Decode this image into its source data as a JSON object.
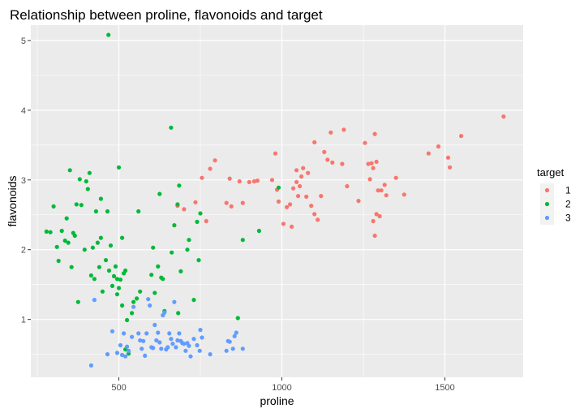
{
  "chart_data": {
    "type": "scatter",
    "title": "Relationship between proline, flavonoids and target",
    "xlabel": "proline",
    "ylabel": "flavonoids",
    "xlim": [
      230,
      1740
    ],
    "ylim": [
      0.17,
      5.22
    ],
    "xticks": [
      500,
      1000,
      1500
    ],
    "yticks": [
      1,
      2,
      3,
      4,
      5
    ],
    "grid": true,
    "legend": {
      "title": "target",
      "placement": "right"
    },
    "series": [
      {
        "name": "1",
        "color": "#F8766D",
        "points": [
          [
            680,
            2.63
          ],
          [
            700,
            2.58
          ],
          [
            735,
            2.68
          ],
          [
            755,
            3.03
          ],
          [
            768,
            2.41
          ],
          [
            780,
            3.16
          ],
          [
            795,
            3.28
          ],
          [
            830,
            2.67
          ],
          [
            840,
            3.02
          ],
          [
            845,
            2.62
          ],
          [
            870,
            2.98
          ],
          [
            880,
            2.67
          ],
          [
            900,
            2.97
          ],
          [
            915,
            2.98
          ],
          [
            925,
            2.99
          ],
          [
            970,
            3.0
          ],
          [
            980,
            3.38
          ],
          [
            985,
            2.86
          ],
          [
            990,
            2.69
          ],
          [
            1005,
            2.37
          ],
          [
            1015,
            2.61
          ],
          [
            1025,
            2.65
          ],
          [
            1030,
            2.33
          ],
          [
            1035,
            2.88
          ],
          [
            1045,
            3.14
          ],
          [
            1045,
            2.97
          ],
          [
            1050,
            2.77
          ],
          [
            1055,
            2.91
          ],
          [
            1060,
            3.05
          ],
          [
            1065,
            3.17
          ],
          [
            1075,
            2.76
          ],
          [
            1080,
            3.1
          ],
          [
            1090,
            2.63
          ],
          [
            1100,
            2.51
          ],
          [
            1100,
            3.54
          ],
          [
            1110,
            2.43
          ],
          [
            1120,
            2.77
          ],
          [
            1130,
            3.4
          ],
          [
            1140,
            3.29
          ],
          [
            1150,
            3.68
          ],
          [
            1155,
            3.25
          ],
          [
            1185,
            3.23
          ],
          [
            1190,
            3.72
          ],
          [
            1200,
            2.91
          ],
          [
            1235,
            2.7
          ],
          [
            1255,
            3.53
          ],
          [
            1265,
            3.23
          ],
          [
            1270,
            3.01
          ],
          [
            1275,
            3.24
          ],
          [
            1280,
            2.41
          ],
          [
            1280,
            3.17
          ],
          [
            1285,
            3.66
          ],
          [
            1285,
            2.2
          ],
          [
            1290,
            3.26
          ],
          [
            1290,
            2.51
          ],
          [
            1295,
            2.85
          ],
          [
            1300,
            2.48
          ],
          [
            1305,
            2.85
          ],
          [
            1315,
            2.93
          ],
          [
            1320,
            2.78
          ],
          [
            1350,
            3.03
          ],
          [
            1375,
            2.79
          ],
          [
            1450,
            3.38
          ],
          [
            1480,
            3.48
          ],
          [
            1510,
            3.32
          ],
          [
            1515,
            3.18
          ],
          [
            1550,
            3.63
          ],
          [
            1680,
            3.91
          ]
        ]
      },
      {
        "name": "2",
        "color": "#00BA38",
        "points": [
          [
            278,
            2.26
          ],
          [
            290,
            2.25
          ],
          [
            300,
            2.62
          ],
          [
            310,
            2.04
          ],
          [
            315,
            1.84
          ],
          [
            325,
            2.27
          ],
          [
            335,
            2.13
          ],
          [
            340,
            2.45
          ],
          [
            345,
            2.1
          ],
          [
            350,
            3.14
          ],
          [
            355,
            1.75
          ],
          [
            360,
            2.24
          ],
          [
            365,
            2.2
          ],
          [
            370,
            2.65
          ],
          [
            375,
            1.25
          ],
          [
            380,
            3.01
          ],
          [
            385,
            2.64
          ],
          [
            395,
            2.0
          ],
          [
            400,
            2.98
          ],
          [
            405,
            2.87
          ],
          [
            410,
            3.1
          ],
          [
            415,
            1.63
          ],
          [
            420,
            2.03
          ],
          [
            425,
            1.58
          ],
          [
            430,
            2.55
          ],
          [
            435,
            2.1
          ],
          [
            440,
            1.75
          ],
          [
            445,
            2.17
          ],
          [
            445,
            2.73
          ],
          [
            450,
            1.4
          ],
          [
            460,
            1.85
          ],
          [
            465,
            2.55
          ],
          [
            468,
            5.08
          ],
          [
            470,
            1.7
          ],
          [
            475,
            2.06
          ],
          [
            480,
            1.48
          ],
          [
            485,
            1.62
          ],
          [
            490,
            1.76
          ],
          [
            495,
            1.36
          ],
          [
            495,
            1.58
          ],
          [
            500,
            1.45
          ],
          [
            500,
            3.18
          ],
          [
            505,
            1.57
          ],
          [
            510,
            1.2
          ],
          [
            510,
            2.17
          ],
          [
            515,
            1.66
          ],
          [
            520,
            1.7
          ],
          [
            520,
            0.57
          ],
          [
            525,
            0.99
          ],
          [
            530,
            0.51
          ],
          [
            540,
            1.09
          ],
          [
            545,
            1.25
          ],
          [
            555,
            1.3
          ],
          [
            560,
            2.55
          ],
          [
            565,
            1.4
          ],
          [
            600,
            1.64
          ],
          [
            605,
            2.03
          ],
          [
            610,
            1.38
          ],
          [
            620,
            1.76
          ],
          [
            625,
            2.8
          ],
          [
            630,
            1.6
          ],
          [
            635,
            1.58
          ],
          [
            640,
            1.12
          ],
          [
            660,
            3.75
          ],
          [
            662,
            1.96
          ],
          [
            670,
            2.35
          ],
          [
            680,
            2.65
          ],
          [
            682,
            1.09
          ],
          [
            685,
            2.92
          ],
          [
            690,
            1.69
          ],
          [
            710,
            2.0
          ],
          [
            715,
            2.14
          ],
          [
            730,
            1.28
          ],
          [
            740,
            2.4
          ],
          [
            745,
            1.85
          ],
          [
            750,
            2.52
          ],
          [
            865,
            1.02
          ],
          [
            880,
            2.14
          ],
          [
            930,
            2.27
          ],
          [
            990,
            2.89
          ]
        ]
      },
      {
        "name": "3",
        "color": "#619CFF",
        "points": [
          [
            415,
            0.34
          ],
          [
            425,
            1.28
          ],
          [
            465,
            0.5
          ],
          [
            480,
            0.83
          ],
          [
            495,
            0.52
          ],
          [
            505,
            0.63
          ],
          [
            510,
            0.49
          ],
          [
            515,
            0.8
          ],
          [
            520,
            0.47
          ],
          [
            525,
            0.61
          ],
          [
            530,
            0.55
          ],
          [
            540,
            0.75
          ],
          [
            545,
            1.18
          ],
          [
            560,
            0.8
          ],
          [
            565,
            0.7
          ],
          [
            570,
            0.58
          ],
          [
            575,
            0.69
          ],
          [
            580,
            0.48
          ],
          [
            585,
            0.8
          ],
          [
            590,
            1.29
          ],
          [
            595,
            1.2
          ],
          [
            600,
            0.6
          ],
          [
            605,
            0.59
          ],
          [
            610,
            0.92
          ],
          [
            615,
            0.7
          ],
          [
            620,
            0.81
          ],
          [
            625,
            0.67
          ],
          [
            630,
            0.58
          ],
          [
            635,
            1.06
          ],
          [
            640,
            1.1
          ],
          [
            645,
            0.57
          ],
          [
            650,
            0.6
          ],
          [
            655,
            0.8
          ],
          [
            660,
            0.72
          ],
          [
            665,
            0.65
          ],
          [
            670,
            1.25
          ],
          [
            675,
            0.6
          ],
          [
            680,
            0.7
          ],
          [
            685,
            0.8
          ],
          [
            690,
            0.69
          ],
          [
            695,
            0.66
          ],
          [
            700,
            0.65
          ],
          [
            705,
            0.55
          ],
          [
            710,
            0.66
          ],
          [
            715,
            0.62
          ],
          [
            720,
            0.47
          ],
          [
            730,
            0.72
          ],
          [
            740,
            0.63
          ],
          [
            748,
            0.55
          ],
          [
            750,
            0.85
          ],
          [
            755,
            0.74
          ],
          [
            780,
            0.5
          ],
          [
            830,
            0.55
          ],
          [
            835,
            0.69
          ],
          [
            840,
            0.68
          ],
          [
            850,
            0.58
          ],
          [
            855,
            0.76
          ],
          [
            860,
            0.81
          ],
          [
            880,
            0.58
          ]
        ]
      }
    ]
  }
}
